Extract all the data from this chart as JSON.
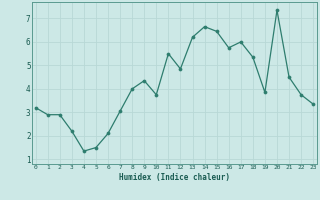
{
  "x": [
    0,
    1,
    2,
    3,
    4,
    5,
    6,
    7,
    8,
    9,
    10,
    11,
    12,
    13,
    14,
    15,
    16,
    17,
    18,
    19,
    20,
    21,
    22,
    23
  ],
  "y": [
    3.2,
    2.9,
    2.9,
    2.2,
    1.35,
    1.5,
    2.1,
    3.05,
    4.0,
    4.35,
    3.75,
    5.5,
    4.85,
    6.2,
    6.65,
    6.45,
    5.75,
    6.0,
    5.35,
    3.85,
    7.35,
    4.5,
    3.75,
    3.35
  ],
  "xlabel": "Humidex (Indice chaleur)",
  "ylim": [
    0.8,
    7.7
  ],
  "xlim": [
    -0.3,
    23.3
  ],
  "yticks": [
    1,
    2,
    3,
    4,
    5,
    6,
    7
  ],
  "xticks": [
    0,
    1,
    2,
    3,
    4,
    5,
    6,
    7,
    8,
    9,
    10,
    11,
    12,
    13,
    14,
    15,
    16,
    17,
    18,
    19,
    20,
    21,
    22,
    23
  ],
  "line_color": "#2e7d6e",
  "marker_color": "#2e7d6e",
  "bg_color": "#cce8e6",
  "grid_color": "#b8d8d6",
  "axis_bg": "#cce8e6",
  "xlabel_color": "#1a5c52",
  "tick_color": "#1a5c52",
  "font": "monospace"
}
